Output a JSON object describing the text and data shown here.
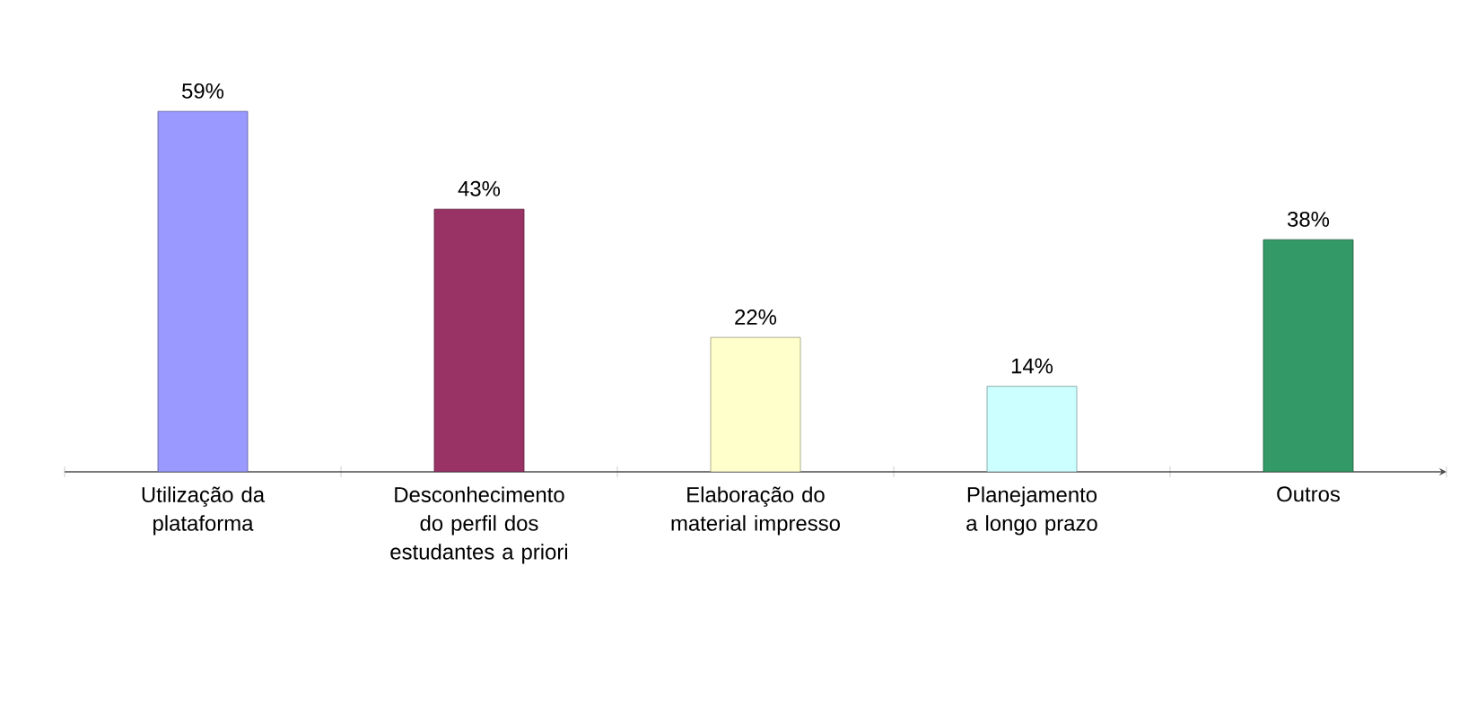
{
  "chart_data": {
    "type": "bar",
    "categories": [
      "Utilização da plataforma",
      "Desconhecimento do perfil dos estudantes a priori",
      "Elaboração do material impresso",
      "Planejamento a longo prazo",
      "Outros"
    ],
    "values": [
      59,
      43,
      22,
      14,
      38
    ],
    "value_labels": [
      "59%",
      "43%",
      "22%",
      "14%",
      "38%"
    ],
    "colors": [
      "#9999ff",
      "#993366",
      "#ffffcc",
      "#ccffff",
      "#339966"
    ]
  }
}
